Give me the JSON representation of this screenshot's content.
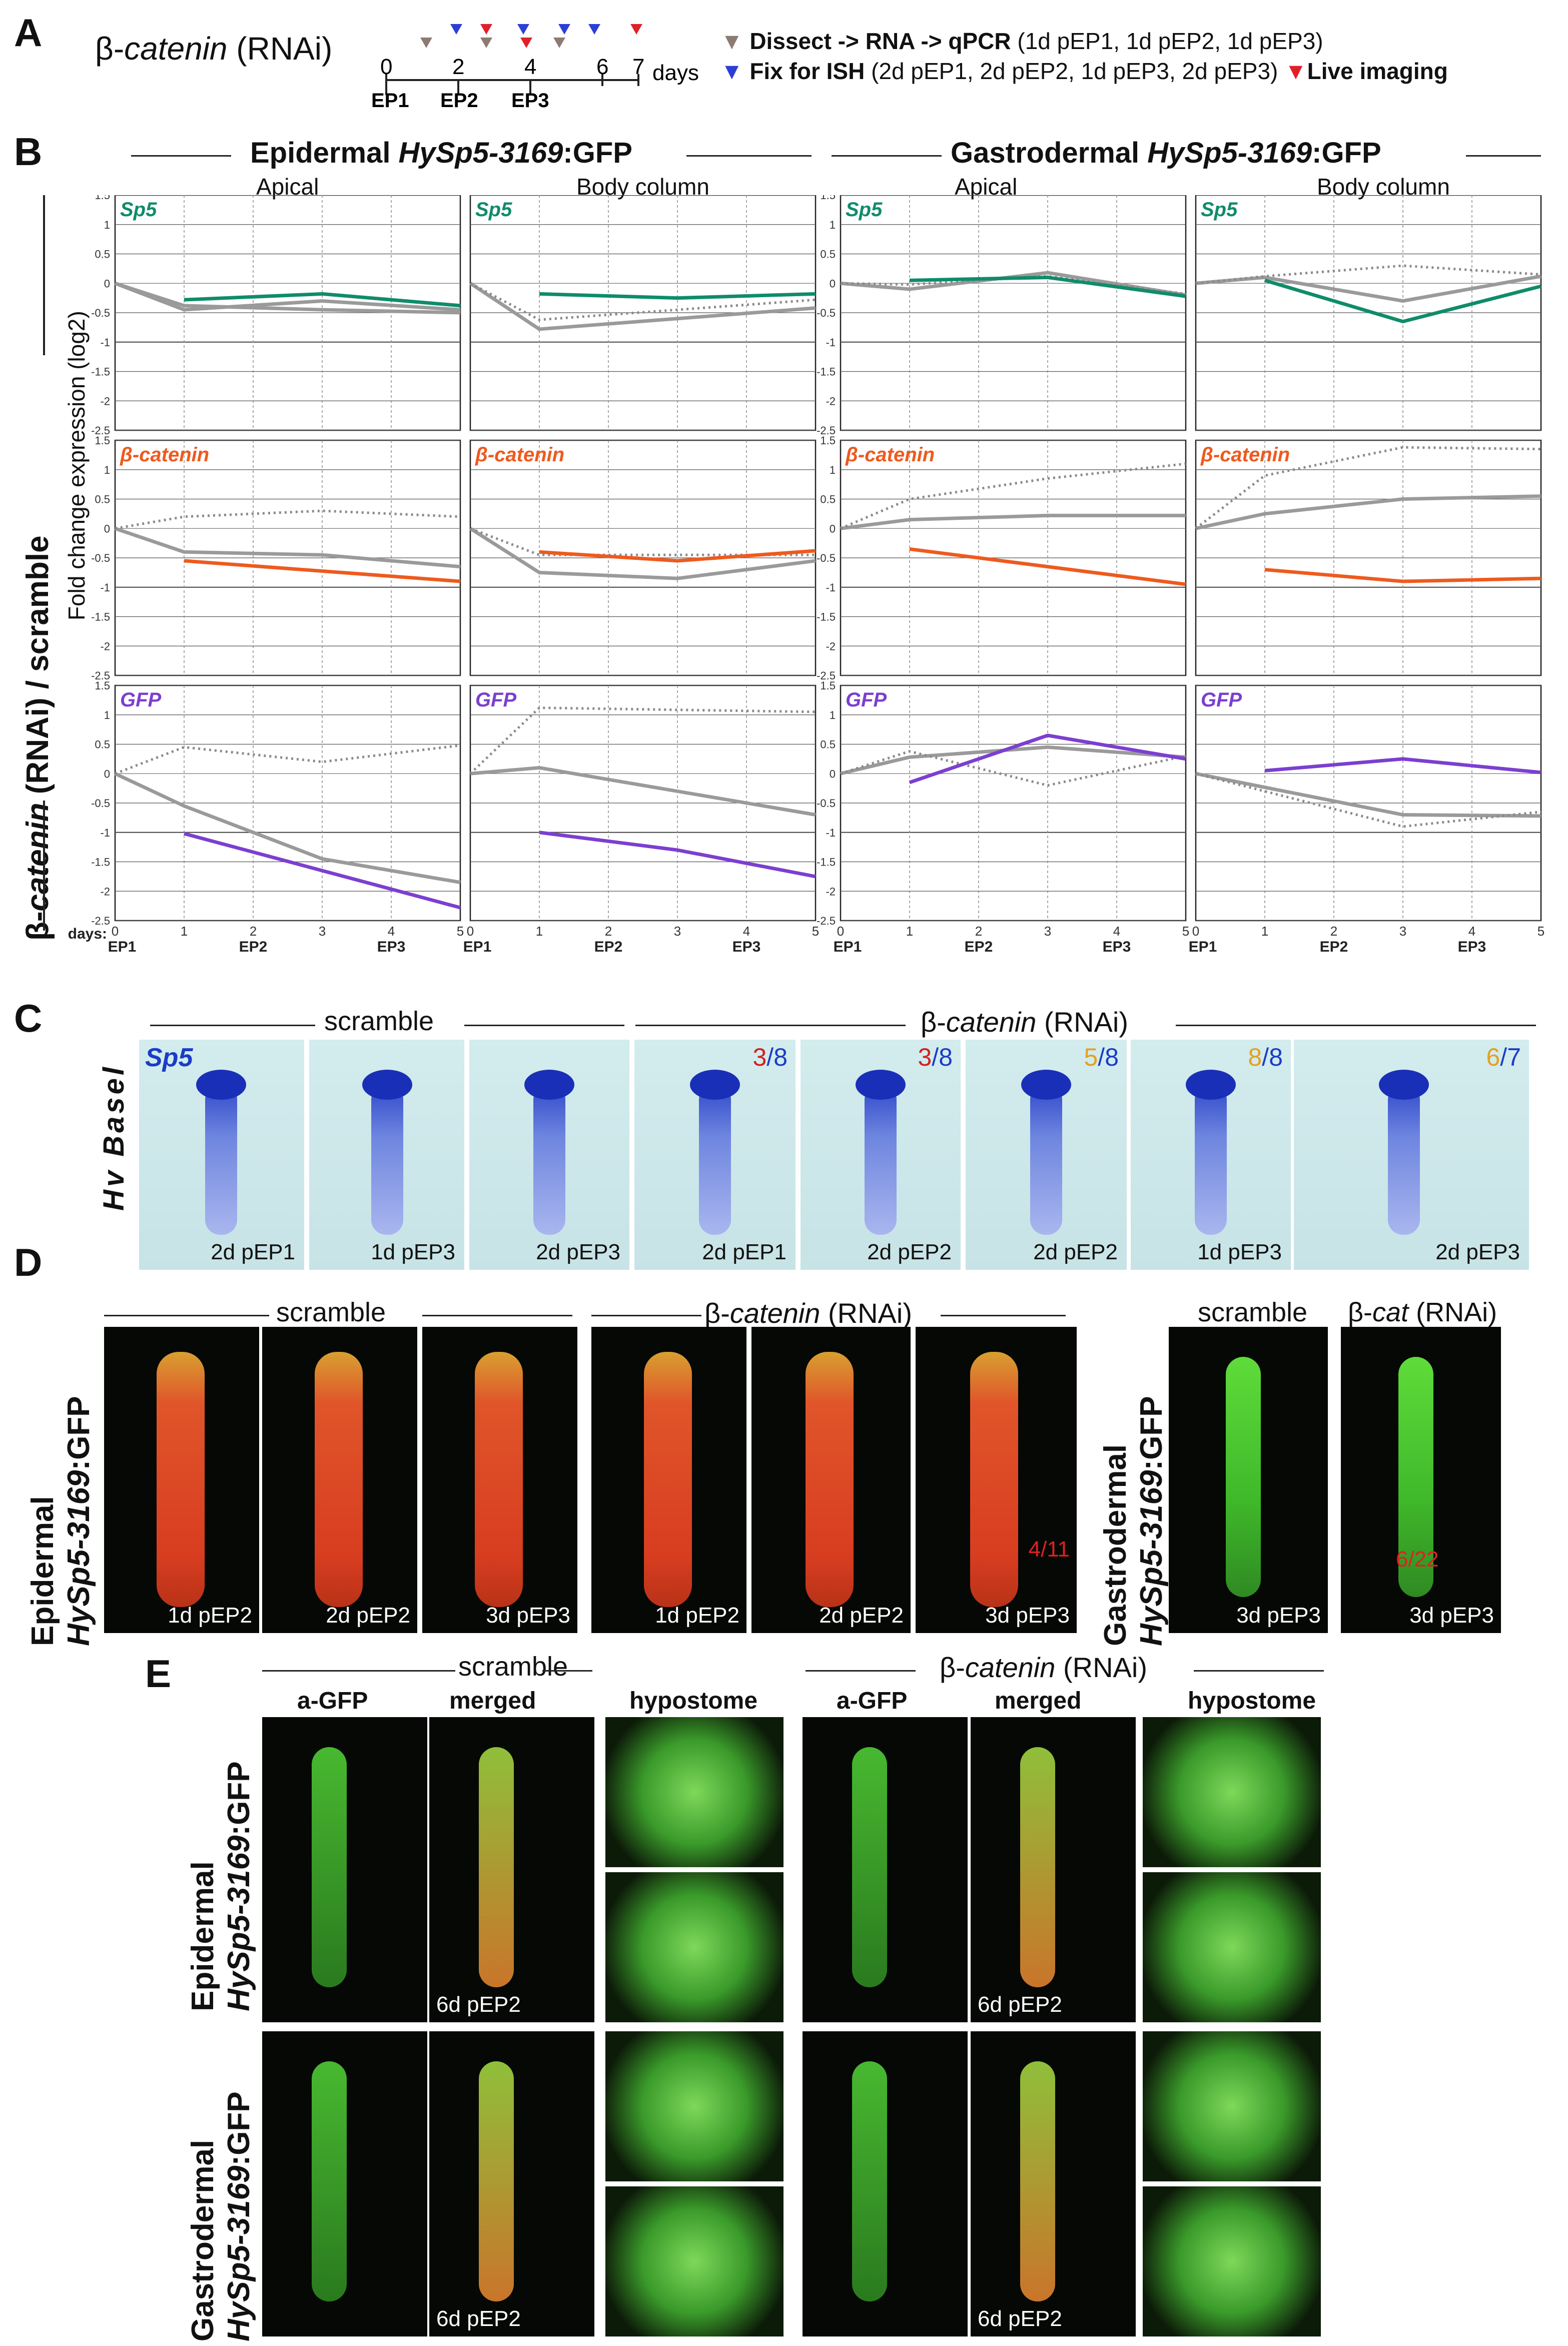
{
  "panels": {
    "A": "A",
    "B": "B",
    "C": "C",
    "D": "D",
    "E": "E"
  },
  "panelA": {
    "title_prefix": "β-",
    "title_italic": "catenin",
    "title_suffix": " (RNAi)",
    "timeline_ticks": [
      "0",
      "2",
      "4",
      "6",
      "7"
    ],
    "days_label": "days",
    "ep_labels": [
      "EP1",
      "EP2",
      "EP3"
    ],
    "legend": [
      {
        "marker": "▼",
        "color": "#8c7b73",
        "bold": "Dissect -> RNA -> qPCR",
        "rest": " (1d pEP1, 1d pEP2, 1d pEP3)"
      },
      {
        "marker": "▼",
        "color": "#2b3fd6",
        "bold": "Fix for ISH",
        "rest": " (2d pEP1, 2d pEP2, 1d pEP3, 2d pEP3)"
      },
      {
        "marker": "▼",
        "color": "#e0202a",
        "bold": "Live imaging",
        "rest": ""
      }
    ]
  },
  "panelB": {
    "header_left": {
      "pre": "Epidermal ",
      "it": "HySp5-3169",
      "post": ":GFP"
    },
    "header_right": {
      "pre": "Gastrodermal ",
      "it": "HySp5-3169",
      "post": ":GFP"
    },
    "col_titles": [
      "Apical",
      "Body column",
      "Apical",
      "Body column"
    ],
    "y_axis_outer": {
      "pre": "β-",
      "it": "catenin",
      "post": " (RNAi) / scramble"
    },
    "y_axis_inner": "Fold change expression (log2)",
    "x_label": "days:",
    "x_ticks": [
      "0",
      "1",
      "2",
      "3",
      "4",
      "5"
    ],
    "x_eps": [
      "EP1",
      "EP2",
      "EP3"
    ],
    "y_ticks": [
      "1.5",
      "1",
      "0.5",
      "0",
      "-0.5",
      "-1",
      "-1.5",
      "-2",
      "-2.5"
    ],
    "genes": [
      {
        "name": "Sp5",
        "color": "#0f8c6a"
      },
      {
        "name": "β-catenin",
        "color": "#ee5a1e"
      },
      {
        "name": "GFP",
        "color": "#7b3fd0"
      }
    ]
  },
  "chart_data": [
    {
      "type": "line",
      "title": "Epidermal Apical – Sp5",
      "xlabel": "days",
      "ylabel": "Fold change expression (log2)",
      "ylim": [
        -2.5,
        1.5
      ],
      "series": [
        {
          "name": "grey1",
          "x": [
            0,
            1,
            3,
            5
          ],
          "values": [
            0,
            -0.45,
            -0.3,
            -0.45
          ]
        },
        {
          "name": "grey2",
          "x": [
            0,
            1,
            3,
            5
          ],
          "values": [
            0,
            -0.38,
            -0.45,
            -0.5
          ]
        },
        {
          "name": "Sp5",
          "x": [
            1,
            3,
            5
          ],
          "values": [
            -0.28,
            -0.18,
            -0.38
          ]
        }
      ]
    },
    {
      "type": "line",
      "title": "Epidermal Body column – Sp5",
      "xlabel": "days",
      "ylabel": "Fold change expression (log2)",
      "ylim": [
        -2.5,
        1.5
      ],
      "series": [
        {
          "name": "grey1",
          "x": [
            0,
            1,
            5
          ],
          "values": [
            0,
            -0.78,
            -0.42
          ]
        },
        {
          "name": "grey-dotted",
          "x": [
            0,
            1,
            5
          ],
          "values": [
            0,
            -0.62,
            -0.28
          ]
        },
        {
          "name": "Sp5",
          "x": [
            1,
            3,
            5
          ],
          "values": [
            -0.18,
            -0.25,
            -0.18
          ]
        }
      ]
    },
    {
      "type": "line",
      "title": "Gastrodermal Apical – Sp5",
      "xlabel": "days",
      "ylabel": "Fold change expression (log2)",
      "ylim": [
        -2.5,
        1.5
      ],
      "series": [
        {
          "name": "grey1",
          "x": [
            0,
            1,
            3,
            5
          ],
          "values": [
            0,
            -0.1,
            0.18,
            -0.2
          ]
        },
        {
          "name": "grey-dotted",
          "x": [
            0,
            1,
            3,
            5
          ],
          "values": [
            0,
            -0.02,
            0.12,
            -0.18
          ]
        },
        {
          "name": "Sp5",
          "x": [
            1,
            3,
            5
          ],
          "values": [
            0.05,
            0.1,
            -0.22
          ]
        }
      ]
    },
    {
      "type": "line",
      "title": "Gastrodermal Body column – Sp5",
      "xlabel": "days",
      "ylabel": "Fold change expression (log2)",
      "ylim": [
        -2.5,
        1.5
      ],
      "series": [
        {
          "name": "grey1",
          "x": [
            0,
            1,
            3,
            5
          ],
          "values": [
            0,
            0.1,
            -0.3,
            0.12
          ]
        },
        {
          "name": "grey-dotted",
          "x": [
            0,
            1,
            3,
            5
          ],
          "values": [
            0,
            0.12,
            0.3,
            0.15
          ]
        },
        {
          "name": "Sp5",
          "x": [
            1,
            3,
            5
          ],
          "values": [
            0.05,
            -0.65,
            -0.05
          ]
        }
      ]
    },
    {
      "type": "line",
      "title": "Epidermal Apical – β-catenin",
      "xlabel": "days",
      "ylabel": "Fold change expression (log2)",
      "ylim": [
        -2.5,
        1.5
      ],
      "series": [
        {
          "name": "grey1",
          "x": [
            0,
            1,
            3,
            5
          ],
          "values": [
            0,
            -0.4,
            -0.45,
            -0.65
          ]
        },
        {
          "name": "grey-dotted",
          "x": [
            0,
            1,
            3,
            5
          ],
          "values": [
            0,
            0.2,
            0.3,
            0.2
          ]
        },
        {
          "name": "β-catenin",
          "x": [
            1,
            5
          ],
          "values": [
            -0.55,
            -0.9
          ]
        }
      ]
    },
    {
      "type": "line",
      "title": "Epidermal Body column – β-catenin",
      "xlabel": "days",
      "ylabel": "Fold change expression (log2)",
      "ylim": [
        -2.5,
        1.5
      ],
      "series": [
        {
          "name": "grey1",
          "x": [
            0,
            1,
            3,
            5
          ],
          "values": [
            0,
            -0.75,
            -0.85,
            -0.55
          ]
        },
        {
          "name": "grey-dotted",
          "x": [
            0,
            1,
            5
          ],
          "values": [
            0,
            -0.45,
            -0.45
          ]
        },
        {
          "name": "β-catenin",
          "x": [
            1,
            3,
            5
          ],
          "values": [
            -0.4,
            -0.55,
            -0.38
          ]
        }
      ]
    },
    {
      "type": "line",
      "title": "Gastrodermal Apical – β-catenin",
      "xlabel": "days",
      "ylabel": "Fold change expression (log2)",
      "ylim": [
        -2.5,
        1.5
      ],
      "series": [
        {
          "name": "grey1",
          "x": [
            0,
            1,
            3,
            5
          ],
          "values": [
            0,
            0.15,
            0.22,
            0.22
          ]
        },
        {
          "name": "grey-dotted",
          "x": [
            0,
            1,
            3,
            5
          ],
          "values": [
            0,
            0.5,
            0.85,
            1.1
          ]
        },
        {
          "name": "β-catenin",
          "x": [
            1,
            5
          ],
          "values": [
            -0.35,
            -0.95
          ]
        }
      ]
    },
    {
      "type": "line",
      "title": "Gastrodermal Body column – β-catenin",
      "xlabel": "days",
      "ylabel": "Fold change expression (log2)",
      "ylim": [
        -2.5,
        1.5
      ],
      "series": [
        {
          "name": "grey1",
          "x": [
            0,
            1,
            3,
            5
          ],
          "values": [
            0,
            0.25,
            0.5,
            0.55
          ]
        },
        {
          "name": "grey-dotted",
          "x": [
            0,
            1,
            3,
            5
          ],
          "values": [
            0,
            0.9,
            1.38,
            1.35
          ]
        },
        {
          "name": "β-catenin",
          "x": [
            1,
            3,
            5
          ],
          "values": [
            -0.7,
            -0.9,
            -0.85
          ]
        }
      ]
    },
    {
      "type": "line",
      "title": "Epidermal Apical – GFP",
      "xlabel": "days",
      "ylabel": "Fold change expression (log2)",
      "ylim": [
        -2.5,
        1.5
      ],
      "series": [
        {
          "name": "grey1",
          "x": [
            0,
            1,
            3,
            5
          ],
          "values": [
            0,
            -0.55,
            -1.45,
            -1.85
          ]
        },
        {
          "name": "grey-dotted",
          "x": [
            0,
            1,
            3,
            5
          ],
          "values": [
            0,
            0.45,
            0.2,
            0.48
          ]
        },
        {
          "name": "GFP",
          "x": [
            1,
            5
          ],
          "values": [
            -1.02,
            -2.28
          ]
        }
      ]
    },
    {
      "type": "line",
      "title": "Epidermal Body column – GFP",
      "xlabel": "days",
      "ylabel": "Fold change expression (log2)",
      "ylim": [
        -2.5,
        1.5
      ],
      "series": [
        {
          "name": "grey1",
          "x": [
            0,
            1,
            5
          ],
          "values": [
            0,
            0.1,
            -0.7
          ]
        },
        {
          "name": "grey-dotted",
          "x": [
            0,
            1,
            5
          ],
          "values": [
            0,
            1.12,
            1.05
          ]
        },
        {
          "name": "GFP",
          "x": [
            1,
            3,
            5
          ],
          "values": [
            -1.0,
            -1.3,
            -1.75
          ]
        }
      ]
    },
    {
      "type": "line",
      "title": "Gastrodermal Apical – GFP",
      "xlabel": "days",
      "ylabel": "Fold change expression (log2)",
      "ylim": [
        -2.5,
        1.5
      ],
      "series": [
        {
          "name": "grey1",
          "x": [
            0,
            1,
            3,
            5
          ],
          "values": [
            0,
            0.28,
            0.45,
            0.28
          ]
        },
        {
          "name": "grey-dotted",
          "x": [
            0,
            1,
            3,
            5
          ],
          "values": [
            0,
            0.38,
            -0.2,
            0.3
          ]
        },
        {
          "name": "GFP",
          "x": [
            1,
            3,
            5
          ],
          "values": [
            -0.15,
            0.65,
            0.25
          ]
        }
      ]
    },
    {
      "type": "line",
      "title": "Gastrodermal Body column – GFP",
      "xlabel": "days",
      "ylabel": "Fold change expression (log2)",
      "ylim": [
        -2.5,
        1.5
      ],
      "series": [
        {
          "name": "grey1",
          "x": [
            0,
            3,
            5
          ],
          "values": [
            0,
            -0.7,
            -0.72
          ]
        },
        {
          "name": "grey-dotted",
          "x": [
            0,
            3,
            5
          ],
          "values": [
            0,
            -0.9,
            -0.65
          ]
        },
        {
          "name": "GFP",
          "x": [
            1,
            3,
            5
          ],
          "values": [
            0.05,
            0.25,
            0.02
          ]
        }
      ]
    }
  ],
  "panelC": {
    "scramble": "scramble",
    "rnai": {
      "pre": "β-",
      "it": "catenin",
      "post": " (RNAi)"
    },
    "side_label": "Hv Basel",
    "gene": "Sp5",
    "images": [
      {
        "caption": "2d pEP1",
        "num": "",
        "den": ""
      },
      {
        "caption": "1d pEP3",
        "num": "",
        "den": ""
      },
      {
        "caption": "2d pEP3",
        "num": "",
        "den": ""
      },
      {
        "caption": "2d pEP1",
        "num": "3",
        "den": "/8",
        "numcolor": "#d42020"
      },
      {
        "caption": "2d pEP2",
        "num": "3",
        "den": "/8",
        "numcolor": "#d42020"
      },
      {
        "caption": "2d pEP2",
        "num": "5",
        "den": "/8",
        "numcolor": "#e5a020"
      },
      {
        "caption": "1d pEP3",
        "num": "8",
        "den": "/8",
        "numcolor": "#e5a020"
      },
      {
        "caption": "2d pEP3",
        "num": "6",
        "den": "/7",
        "numcolor": "#e5a020"
      }
    ]
  },
  "panelD": {
    "scramble": "scramble",
    "rnai": {
      "pre": "β-",
      "it": "catenin",
      "post": " (RNAi)"
    },
    "scramble2": "scramble",
    "rnai2": {
      "pre": "β-",
      "it": "cat",
      "post": " (RNAi)"
    },
    "side_epi": {
      "l1": "Epidermal",
      "l2it": "HySp5-3169",
      "l2": ":GFP"
    },
    "side_gastro": {
      "l1": "Gastrodermal",
      "l2it": "HySp5-3169",
      "l2": ":GFP"
    },
    "captions": [
      "1d pEP2",
      "2d pEP2",
      "3d pEP3",
      "1d pEP2",
      "2d pEP2",
      "3d pEP3",
      "3d pEP3",
      "3d pEP3"
    ],
    "ratio1": "4/11",
    "ratio2": "6/22"
  },
  "panelE": {
    "scramble": "scramble",
    "rnai": {
      "pre": "β-",
      "it": "catenin",
      "post": " (RNAi)"
    },
    "cols": [
      "a-GFP",
      "merged",
      "hypostome",
      "a-GFP",
      "merged",
      "hypostome"
    ],
    "side_epi": {
      "l1": "Epidermal",
      "l2it": "HySp5-3169",
      "l2": ":GFP"
    },
    "side_gastro": {
      "l1": "Gastrodermal",
      "l2it": "HySp5-3169",
      "l2": ":GFP"
    },
    "captions": [
      "6d pEP2",
      "6d pEP2",
      "6d pEP2",
      "6d pEP2"
    ]
  }
}
